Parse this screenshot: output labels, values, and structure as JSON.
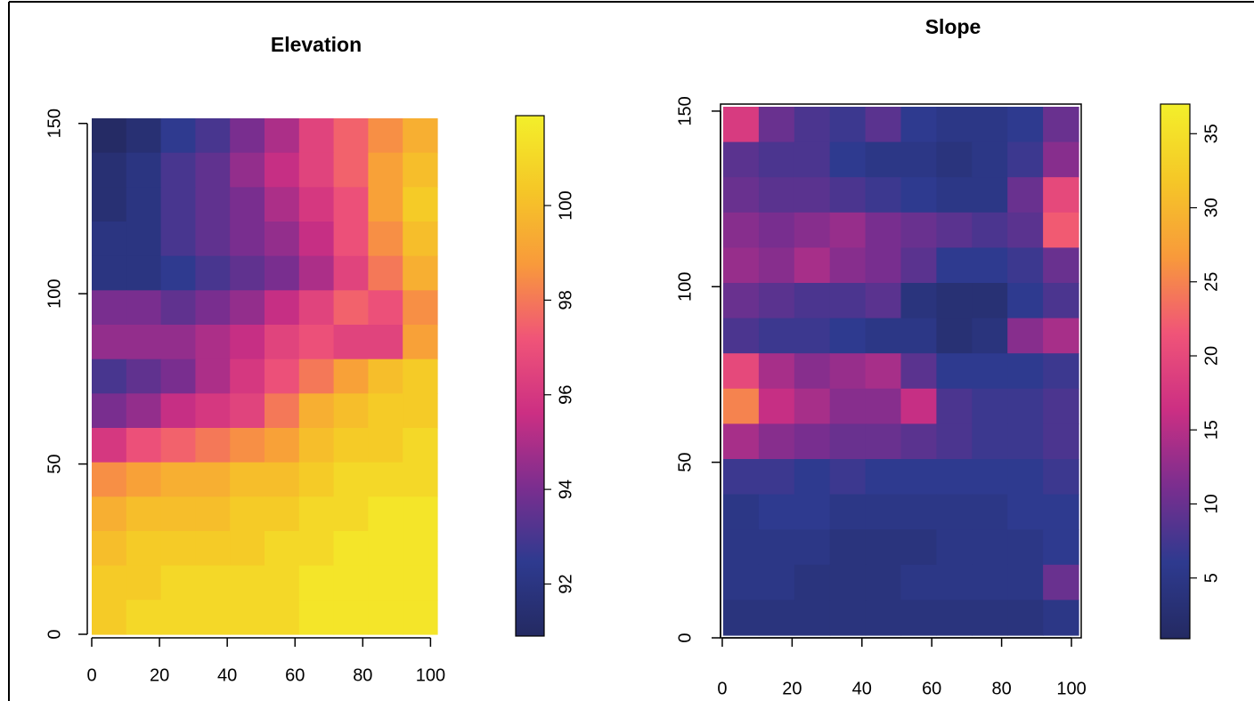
{
  "chart_data": [
    {
      "type": "raster",
      "title": "Elevation",
      "xlim": [
        0,
        102
      ],
      "ylim": [
        0,
        151.5
      ],
      "xticks": [
        0,
        20,
        40,
        60,
        80,
        100
      ],
      "yticks": [
        0,
        50,
        100,
        150
      ],
      "zlim": [
        90.9,
        101.9
      ],
      "zticks": [
        92,
        94,
        96,
        98,
        100
      ],
      "colors": [
        "#242a62",
        "#2e3a8f",
        "#7b2e8f",
        "#cc2f83",
        "#f05478",
        "#f89a3b",
        "#f5c727",
        "#f3ef2a"
      ],
      "box": false,
      "values": [
        [
          91,
          91.5,
          92.5,
          93,
          94,
          95,
          96.5,
          97.5,
          98.5,
          99.5
        ],
        [
          91.5,
          92,
          93,
          93.5,
          94.5,
          95.5,
          96.5,
          97.5,
          99,
          100
        ],
        [
          91.5,
          92,
          93,
          93.5,
          94,
          95,
          96,
          97,
          99,
          100.5
        ],
        [
          92,
          92,
          93,
          93.5,
          94,
          94.5,
          95.5,
          97,
          98.5,
          100
        ],
        [
          92,
          92,
          92.5,
          93,
          93.5,
          94,
          95,
          96.5,
          98,
          99.5
        ],
        [
          94,
          94,
          93.5,
          94,
          94.5,
          95.5,
          96.5,
          97.5,
          97,
          98.5
        ],
        [
          94.5,
          94.5,
          94.5,
          95,
          95.5,
          96.5,
          97,
          96.5,
          96.5,
          99
        ],
        [
          93,
          93.5,
          94,
          95,
          96,
          97,
          98,
          99,
          100,
          100.5
        ],
        [
          94,
          94.5,
          95.5,
          96,
          96.5,
          98,
          99.5,
          100,
          100.5,
          100.5
        ],
        [
          96,
          97,
          97.5,
          98,
          98.5,
          99,
          100,
          100.5,
          100.5,
          101
        ],
        [
          98.5,
          99,
          99.5,
          99.5,
          100,
          100,
          100.5,
          101,
          101,
          101
        ],
        [
          99.5,
          100,
          100,
          100,
          100.5,
          100.5,
          101,
          101,
          101.5,
          101.5
        ],
        [
          100,
          100.5,
          100.5,
          100.5,
          100.5,
          101,
          101,
          101.5,
          101.5,
          101.5
        ],
        [
          100.5,
          100.5,
          101,
          101,
          101,
          101,
          101.5,
          101.5,
          101.5,
          101.5
        ],
        [
          100.5,
          101,
          101,
          101,
          101,
          101,
          101.5,
          101.5,
          101.5,
          101.5
        ]
      ]
    },
    {
      "type": "raster",
      "title": "Slope",
      "xlim": [
        -0.5,
        102.8
      ],
      "ylim": [
        0,
        152
      ],
      "xticks": [
        0,
        20,
        40,
        60,
        80,
        100
      ],
      "yticks": [
        0,
        50,
        100,
        150
      ],
      "zlim": [
        0.9,
        37
      ],
      "zticks": [
        5,
        10,
        15,
        20,
        25,
        30,
        35
      ],
      "colors": [
        "#242a62",
        "#2e3a8f",
        "#7b2e8f",
        "#cc2f83",
        "#f05478",
        "#f89a3b",
        "#f5c727",
        "#f3ef2a"
      ],
      "box": true,
      "values": [
        [
          18,
          10,
          8,
          7,
          9,
          6,
          5,
          5,
          6,
          10
        ],
        [
          9,
          8,
          8,
          6,
          5,
          5,
          4,
          5,
          7,
          12
        ],
        [
          10,
          9,
          9,
          8,
          7,
          6,
          5,
          5,
          10,
          20
        ],
        [
          12,
          11,
          12,
          13,
          11,
          10,
          9,
          8,
          9,
          22
        ],
        [
          13,
          12,
          14,
          12,
          11,
          9,
          6,
          6,
          7,
          10
        ],
        [
          10,
          9,
          8,
          8,
          9,
          4,
          3,
          3,
          6,
          8
        ],
        [
          8,
          7,
          7,
          6,
          5,
          5,
          3,
          4,
          12,
          14
        ],
        [
          20,
          14,
          12,
          13,
          14,
          9,
          6,
          6,
          6,
          7
        ],
        [
          25,
          16,
          14,
          12,
          12,
          16,
          8,
          7,
          7,
          8
        ],
        [
          14,
          12,
          11,
          10,
          10,
          9,
          8,
          7,
          7,
          8
        ],
        [
          7,
          7,
          6,
          7,
          6,
          6,
          6,
          6,
          6,
          7
        ],
        [
          5,
          6,
          6,
          5,
          5,
          5,
          5,
          5,
          6,
          6
        ],
        [
          5,
          5,
          5,
          4,
          4,
          4,
          5,
          5,
          5,
          6
        ],
        [
          5,
          5,
          4,
          4,
          4,
          5,
          5,
          5,
          5,
          10
        ],
        [
          4,
          4,
          4,
          4,
          4,
          4,
          4,
          4,
          4,
          5
        ]
      ]
    }
  ]
}
